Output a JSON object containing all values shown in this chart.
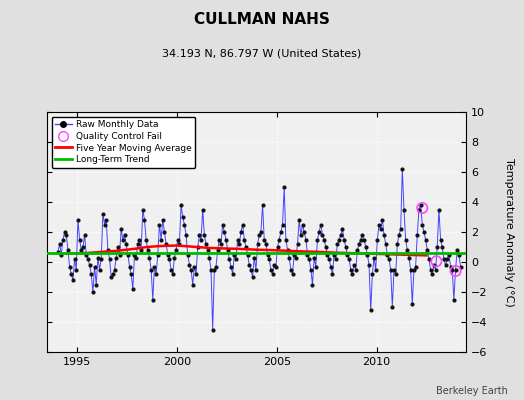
{
  "title": "CULLMAN NAHS",
  "subtitle": "34.193 N, 86.797 W (United States)",
  "ylabel": "Temperature Anomaly (°C)",
  "watermark": "Berkeley Earth",
  "xlim": [
    1993.5,
    2014.5
  ],
  "ylim": [
    -6,
    10
  ],
  "yticks": [
    -6,
    -4,
    -2,
    0,
    2,
    4,
    6,
    8,
    10
  ],
  "xticks": [
    1995,
    2000,
    2005,
    2010
  ],
  "fig_bg_color": "#e0e0e0",
  "plot_bg_color": "#f0f0f0",
  "long_term_trend_y": 0.6,
  "long_term_trend_color": "#00bb00",
  "moving_avg_color": "#ff0000",
  "raw_line_color": "#4444ff",
  "raw_marker_color": "#111111",
  "qc_fail_color": "#ff44ff",
  "raw_data": [
    [
      1994.0417,
      0.7
    ],
    [
      1994.125,
      1.2
    ],
    [
      1994.2083,
      0.5
    ],
    [
      1994.2917,
      1.5
    ],
    [
      1994.375,
      2.0
    ],
    [
      1994.4583,
      1.8
    ],
    [
      1994.5417,
      0.8
    ],
    [
      1994.625,
      -0.3
    ],
    [
      1994.7083,
      -0.8
    ],
    [
      1994.7917,
      -1.2
    ],
    [
      1994.875,
      0.2
    ],
    [
      1994.9583,
      -0.5
    ],
    [
      1995.0417,
      2.8
    ],
    [
      1995.125,
      1.5
    ],
    [
      1995.2083,
      0.8
    ],
    [
      1995.2917,
      1.0
    ],
    [
      1995.375,
      1.8
    ],
    [
      1995.4583,
      0.5
    ],
    [
      1995.5417,
      0.2
    ],
    [
      1995.625,
      -0.2
    ],
    [
      1995.7083,
      -0.8
    ],
    [
      1995.7917,
      -2.0
    ],
    [
      1995.875,
      -0.3
    ],
    [
      1995.9583,
      -1.5
    ],
    [
      1996.0417,
      0.3
    ],
    [
      1996.125,
      -0.5
    ],
    [
      1996.2083,
      0.2
    ],
    [
      1996.2917,
      3.2
    ],
    [
      1996.375,
      2.5
    ],
    [
      1996.4583,
      2.8
    ],
    [
      1996.5417,
      0.8
    ],
    [
      1996.625,
      0.2
    ],
    [
      1996.7083,
      -1.0
    ],
    [
      1996.7917,
      -0.8
    ],
    [
      1996.875,
      -0.5
    ],
    [
      1996.9583,
      0.3
    ],
    [
      1997.0417,
      1.0
    ],
    [
      1997.125,
      0.5
    ],
    [
      1997.2083,
      2.2
    ],
    [
      1997.2917,
      1.5
    ],
    [
      1997.375,
      1.8
    ],
    [
      1997.4583,
      1.2
    ],
    [
      1997.5417,
      0.5
    ],
    [
      1997.625,
      -0.3
    ],
    [
      1997.7083,
      -0.8
    ],
    [
      1997.7917,
      -1.8
    ],
    [
      1997.875,
      0.5
    ],
    [
      1997.9583,
      0.3
    ],
    [
      1998.0417,
      1.2
    ],
    [
      1998.125,
      1.5
    ],
    [
      1998.2083,
      0.8
    ],
    [
      1998.2917,
      3.5
    ],
    [
      1998.375,
      2.8
    ],
    [
      1998.4583,
      1.5
    ],
    [
      1998.5417,
      0.8
    ],
    [
      1998.625,
      0.3
    ],
    [
      1998.7083,
      -0.5
    ],
    [
      1998.7917,
      -2.5
    ],
    [
      1998.875,
      -0.3
    ],
    [
      1998.9583,
      -0.8
    ],
    [
      1999.0417,
      0.5
    ],
    [
      1999.125,
      2.5
    ],
    [
      1999.2083,
      1.5
    ],
    [
      1999.2917,
      2.8
    ],
    [
      1999.375,
      2.0
    ],
    [
      1999.4583,
      1.2
    ],
    [
      1999.5417,
      0.5
    ],
    [
      1999.625,
      0.2
    ],
    [
      1999.7083,
      -0.5
    ],
    [
      1999.7917,
      -0.8
    ],
    [
      1999.875,
      0.3
    ],
    [
      1999.9583,
      0.8
    ],
    [
      2000.0417,
      1.5
    ],
    [
      2000.125,
      1.2
    ],
    [
      2000.2083,
      3.8
    ],
    [
      2000.2917,
      3.0
    ],
    [
      2000.375,
      2.5
    ],
    [
      2000.4583,
      1.8
    ],
    [
      2000.5417,
      0.5
    ],
    [
      2000.625,
      -0.2
    ],
    [
      2000.7083,
      -0.5
    ],
    [
      2000.7917,
      -1.5
    ],
    [
      2000.875,
      -0.3
    ],
    [
      2000.9583,
      -0.8
    ],
    [
      2001.0417,
      1.0
    ],
    [
      2001.125,
      1.8
    ],
    [
      2001.2083,
      1.5
    ],
    [
      2001.2917,
      3.5
    ],
    [
      2001.375,
      1.8
    ],
    [
      2001.4583,
      1.2
    ],
    [
      2001.5417,
      0.8
    ],
    [
      2001.625,
      0.3
    ],
    [
      2001.7083,
      -0.5
    ],
    [
      2001.7917,
      -4.5
    ],
    [
      2001.875,
      -0.5
    ],
    [
      2001.9583,
      -0.3
    ],
    [
      2002.0417,
      0.8
    ],
    [
      2002.125,
      1.5
    ],
    [
      2002.2083,
      1.2
    ],
    [
      2002.2917,
      2.5
    ],
    [
      2002.375,
      2.0
    ],
    [
      2002.4583,
      1.5
    ],
    [
      2002.5417,
      0.8
    ],
    [
      2002.625,
      0.2
    ],
    [
      2002.7083,
      -0.3
    ],
    [
      2002.7917,
      -0.8
    ],
    [
      2002.875,
      0.5
    ],
    [
      2002.9583,
      0.2
    ],
    [
      2003.0417,
      1.5
    ],
    [
      2003.125,
      1.2
    ],
    [
      2003.2083,
      2.0
    ],
    [
      2003.2917,
      2.5
    ],
    [
      2003.375,
      1.5
    ],
    [
      2003.4583,
      1.0
    ],
    [
      2003.5417,
      0.5
    ],
    [
      2003.625,
      -0.2
    ],
    [
      2003.7083,
      -0.5
    ],
    [
      2003.7917,
      -1.0
    ],
    [
      2003.875,
      0.3
    ],
    [
      2003.9583,
      -0.5
    ],
    [
      2004.0417,
      1.2
    ],
    [
      2004.125,
      1.8
    ],
    [
      2004.2083,
      2.0
    ],
    [
      2004.2917,
      3.8
    ],
    [
      2004.375,
      1.5
    ],
    [
      2004.4583,
      1.2
    ],
    [
      2004.5417,
      0.5
    ],
    [
      2004.625,
      0.2
    ],
    [
      2004.7083,
      -0.5
    ],
    [
      2004.7917,
      -0.8
    ],
    [
      2004.875,
      -0.2
    ],
    [
      2004.9583,
      -0.3
    ],
    [
      2005.0417,
      1.0
    ],
    [
      2005.125,
      1.5
    ],
    [
      2005.2083,
      2.0
    ],
    [
      2005.2917,
      2.5
    ],
    [
      2005.375,
      5.0
    ],
    [
      2005.4583,
      1.5
    ],
    [
      2005.5417,
      0.8
    ],
    [
      2005.625,
      0.3
    ],
    [
      2005.7083,
      -0.5
    ],
    [
      2005.7917,
      -0.8
    ],
    [
      2005.875,
      0.5
    ],
    [
      2005.9583,
      0.3
    ],
    [
      2006.0417,
      1.2
    ],
    [
      2006.125,
      2.8
    ],
    [
      2006.2083,
      1.8
    ],
    [
      2006.2917,
      2.5
    ],
    [
      2006.375,
      2.0
    ],
    [
      2006.4583,
      1.5
    ],
    [
      2006.5417,
      0.5
    ],
    [
      2006.625,
      0.2
    ],
    [
      2006.7083,
      -0.5
    ],
    [
      2006.7917,
      -1.5
    ],
    [
      2006.875,
      0.3
    ],
    [
      2006.9583,
      -0.3
    ],
    [
      2007.0417,
      1.5
    ],
    [
      2007.125,
      2.0
    ],
    [
      2007.2083,
      2.5
    ],
    [
      2007.2917,
      1.8
    ],
    [
      2007.375,
      1.5
    ],
    [
      2007.4583,
      1.0
    ],
    [
      2007.5417,
      0.5
    ],
    [
      2007.625,
      0.2
    ],
    [
      2007.7083,
      -0.3
    ],
    [
      2007.7917,
      -0.8
    ],
    [
      2007.875,
      0.5
    ],
    [
      2007.9583,
      0.2
    ],
    [
      2008.0417,
      1.2
    ],
    [
      2008.125,
      1.5
    ],
    [
      2008.2083,
      1.8
    ],
    [
      2008.2917,
      2.2
    ],
    [
      2008.375,
      1.5
    ],
    [
      2008.4583,
      1.0
    ],
    [
      2008.5417,
      0.5
    ],
    [
      2008.625,
      0.2
    ],
    [
      2008.7083,
      -0.5
    ],
    [
      2008.7917,
      -0.8
    ],
    [
      2008.875,
      -0.2
    ],
    [
      2008.9583,
      -0.5
    ],
    [
      2009.0417,
      0.8
    ],
    [
      2009.125,
      1.2
    ],
    [
      2009.2083,
      1.5
    ],
    [
      2009.2917,
      1.8
    ],
    [
      2009.375,
      1.5
    ],
    [
      2009.4583,
      1.0
    ],
    [
      2009.5417,
      0.5
    ],
    [
      2009.625,
      -0.2
    ],
    [
      2009.7083,
      -3.2
    ],
    [
      2009.7917,
      -0.8
    ],
    [
      2009.875,
      0.3
    ],
    [
      2009.9583,
      -0.5
    ],
    [
      2010.0417,
      1.5
    ],
    [
      2010.125,
      2.5
    ],
    [
      2010.2083,
      2.2
    ],
    [
      2010.2917,
      2.8
    ],
    [
      2010.375,
      1.8
    ],
    [
      2010.4583,
      1.2
    ],
    [
      2010.5417,
      0.5
    ],
    [
      2010.625,
      0.2
    ],
    [
      2010.7083,
      -0.5
    ],
    [
      2010.7917,
      -3.0
    ],
    [
      2010.875,
      -0.5
    ],
    [
      2010.9583,
      -0.8
    ],
    [
      2011.0417,
      1.2
    ],
    [
      2011.125,
      1.8
    ],
    [
      2011.2083,
      2.2
    ],
    [
      2011.2917,
      6.2
    ],
    [
      2011.375,
      3.5
    ],
    [
      2011.4583,
      1.5
    ],
    [
      2011.5417,
      0.8
    ],
    [
      2011.625,
      0.3
    ],
    [
      2011.7083,
      -0.5
    ],
    [
      2011.7917,
      -2.8
    ],
    [
      2011.875,
      -0.5
    ],
    [
      2011.9583,
      -0.3
    ],
    [
      2012.0417,
      1.8
    ],
    [
      2012.125,
      3.5
    ],
    [
      2012.2083,
      3.8
    ],
    [
      2012.2917,
      2.5
    ],
    [
      2012.375,
      2.0
    ],
    [
      2012.4583,
      1.5
    ],
    [
      2012.5417,
      0.8
    ],
    [
      2012.625,
      0.2
    ],
    [
      2012.7083,
      -0.5
    ],
    [
      2012.7917,
      -0.8
    ],
    [
      2012.875,
      -0.2
    ],
    [
      2012.9583,
      -0.5
    ],
    [
      2013.0417,
      1.0
    ],
    [
      2013.125,
      3.5
    ],
    [
      2013.2083,
      1.5
    ],
    [
      2013.2917,
      1.0
    ],
    [
      2013.375,
      0.2
    ],
    [
      2013.4583,
      -0.2
    ],
    [
      2013.5417,
      0.2
    ],
    [
      2013.625,
      0.5
    ],
    [
      2013.7083,
      -0.3
    ],
    [
      2013.7917,
      -0.5
    ],
    [
      2013.875,
      -2.5
    ],
    [
      2013.9583,
      -0.5
    ],
    [
      2014.0417,
      0.8
    ],
    [
      2014.125,
      0.5
    ],
    [
      2014.2083,
      -0.3
    ]
  ],
  "moving_avg_data": [
    [
      1994.5,
      0.55
    ],
    [
      1995.0,
      0.58
    ],
    [
      1995.5,
      0.6
    ],
    [
      1996.0,
      0.65
    ],
    [
      1996.5,
      0.7
    ],
    [
      1997.0,
      0.75
    ],
    [
      1997.5,
      0.82
    ],
    [
      1998.0,
      0.9
    ],
    [
      1998.5,
      1.0
    ],
    [
      1999.0,
      1.05
    ],
    [
      1999.5,
      1.08
    ],
    [
      2000.0,
      1.1
    ],
    [
      2000.5,
      1.05
    ],
    [
      2001.0,
      1.0
    ],
    [
      2001.5,
      0.95
    ],
    [
      2002.0,
      0.92
    ],
    [
      2002.5,
      0.9
    ],
    [
      2003.0,
      0.88
    ],
    [
      2003.5,
      0.85
    ],
    [
      2004.0,
      0.82
    ],
    [
      2004.5,
      0.8
    ],
    [
      2005.0,
      0.78
    ],
    [
      2005.5,
      0.75
    ],
    [
      2006.0,
      0.72
    ],
    [
      2006.5,
      0.7
    ],
    [
      2007.0,
      0.68
    ],
    [
      2007.5,
      0.65
    ],
    [
      2008.0,
      0.62
    ],
    [
      2008.5,
      0.6
    ],
    [
      2009.0,
      0.58
    ],
    [
      2009.5,
      0.56
    ],
    [
      2010.0,
      0.54
    ],
    [
      2010.5,
      0.52
    ],
    [
      2011.0,
      0.5
    ],
    [
      2011.5,
      0.48
    ],
    [
      2012.0,
      0.46
    ],
    [
      2012.5,
      0.44
    ]
  ],
  "qc_fail_points": [
    [
      2012.2917,
      3.6
    ],
    [
      2013.0,
      0.05
    ],
    [
      2013.9583,
      -0.6
    ]
  ]
}
